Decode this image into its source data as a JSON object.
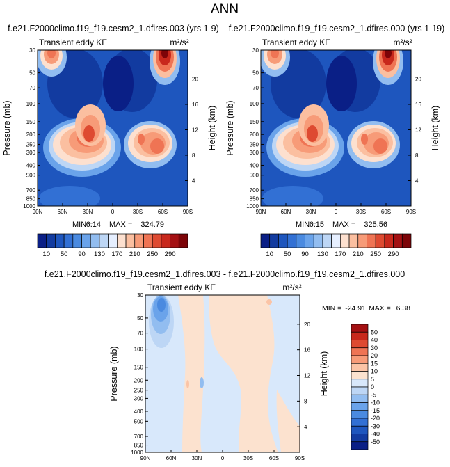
{
  "figure": {
    "title": "ANN"
  },
  "chart_data": [
    {
      "type": "heatmap",
      "title": "f.e21.F2000climo.f19_f19.cesm2_1.dfires.003 (yrs 1-9)",
      "subtitle_left": "Transient eddy KE",
      "units": "m²/s²",
      "ylabel": "Pressure (mb)",
      "ylabel_right": "Height (km)",
      "xticks": [
        "90N",
        "60N",
        "30N",
        "0",
        "30S",
        "60S",
        "90S"
      ],
      "yticks": [
        "30",
        "50",
        "70",
        "100",
        "150",
        "200",
        "250",
        "300",
        "400",
        "500",
        "700",
        "850",
        "1000"
      ],
      "yticks_right": [
        "20",
        "16",
        "12",
        "8",
        "4"
      ],
      "stats_min_label": "MIN =",
      "stats_min": "6.14",
      "stats_max_label": "MAX =",
      "stats_max": "324.79",
      "min": 6.14,
      "max": 324.79,
      "colorbar_orientation": "horizontal",
      "colorbar_labels": [
        "10",
        "50",
        "90",
        "130",
        "170",
        "210",
        "250",
        "290"
      ],
      "maxima": [
        {
          "lat": 30,
          "pressure": 200,
          "value": 320
        },
        {
          "lat": -50,
          "pressure": 250,
          "value": 300
        },
        {
          "lat": -60,
          "pressure": 30,
          "value": 324
        },
        {
          "lat": 75,
          "pressure": 30,
          "value": 250
        }
      ]
    },
    {
      "type": "heatmap",
      "title": "f.e21.F2000climo.f19_f19.cesm2_1.dfires.000 (yrs 1-19)",
      "subtitle_left": "Transient eddy KE",
      "units": "m²/s²",
      "ylabel": "Pressure (mb)",
      "ylabel_right": "Height (km)",
      "xticks": [
        "90N",
        "60N",
        "30N",
        "0",
        "30S",
        "60S",
        "90S"
      ],
      "yticks": [
        "30",
        "50",
        "70",
        "100",
        "150",
        "200",
        "250",
        "300",
        "400",
        "500",
        "700",
        "850",
        "1000"
      ],
      "yticks_right": [
        "20",
        "16",
        "12",
        "8",
        "4"
      ],
      "stats_min_label": "MIN =",
      "stats_min": "6.15",
      "stats_max_label": "MAX =",
      "stats_max": "325.56",
      "min": 6.15,
      "max": 325.56,
      "colorbar_orientation": "horizontal",
      "colorbar_labels": [
        "10",
        "50",
        "90",
        "130",
        "170",
        "210",
        "250",
        "290"
      ],
      "maxima": [
        {
          "lat": 30,
          "pressure": 200,
          "value": 320
        },
        {
          "lat": -50,
          "pressure": 250,
          "value": 300
        },
        {
          "lat": -60,
          "pressure": 30,
          "value": 325
        },
        {
          "lat": 75,
          "pressure": 30,
          "value": 250
        }
      ]
    },
    {
      "type": "heatmap",
      "title": "f.e21.F2000climo.f19_f19.cesm2_1.dfires.003 - f.e21.F2000climo.f19_f19.cesm2_1.dfires.000",
      "subtitle_left": "Transient eddy KE",
      "units": "m²/s²",
      "ylabel": "Pressure (mb)",
      "ylabel_right": "Height (km)",
      "xticks": [
        "90N",
        "60N",
        "30N",
        "0",
        "30S",
        "60S",
        "90S"
      ],
      "yticks": [
        "30",
        "50",
        "70",
        "100",
        "150",
        "200",
        "250",
        "300",
        "400",
        "500",
        "700",
        "850",
        "1000"
      ],
      "yticks_right": [
        "20",
        "16",
        "12",
        "8",
        "4"
      ],
      "stats_min_label": "MIN =",
      "stats_min": "-24.91",
      "stats_max_label": "MAX =",
      "stats_max": "6.38",
      "min": -24.91,
      "max": 6.38,
      "colorbar_orientation": "vertical",
      "colorbar_labels": [
        "50",
        "40",
        "30",
        "20",
        "15",
        "10",
        "5",
        "0",
        "-5",
        "-10",
        "-15",
        "-20",
        "-30",
        "-40",
        "-50"
      ],
      "minima": [
        {
          "lat": 70,
          "pressure": 40,
          "value": -24.91
        }
      ]
    }
  ],
  "colors": {
    "full_scale": [
      "#0a1f86",
      "#123ba0",
      "#1e56be",
      "#3270d4",
      "#4a8ae0",
      "#6aa3ea",
      "#92bdf0",
      "#bdd6f5",
      "#e6efff",
      "#fde0cf",
      "#fbbfa0",
      "#f79b78",
      "#ef7454",
      "#de4a31",
      "#c8281c",
      "#a41012",
      "#7d0408"
    ],
    "diff_scale": [
      "#0a1f86",
      "#123ba0",
      "#1e56be",
      "#3270d4",
      "#4a8ae0",
      "#6aa3ea",
      "#92bdf0",
      "#bdd6f5",
      "#d8e8fb",
      "#fce2cf",
      "#fbc4a6",
      "#f79b78",
      "#ef7454",
      "#de4a31",
      "#c8281c",
      "#a41012"
    ]
  }
}
